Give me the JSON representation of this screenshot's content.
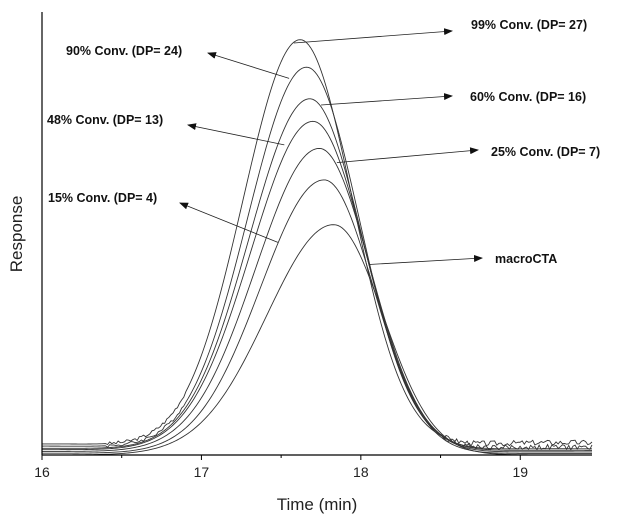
{
  "chart_data": {
    "type": "line",
    "title": "",
    "xlabel": "Time (min)",
    "ylabel": "Response",
    "xlim": [
      16,
      19.45
    ],
    "ylim": [
      0,
      1.0
    ],
    "x_ticks": [
      "16",
      "17",
      "18",
      "19"
    ],
    "x_tick_values": [
      16,
      17,
      18,
      19
    ],
    "y_ticks_shown": false,
    "grid": false,
    "legend": "none (inline arrow annotations)",
    "series": [
      {
        "name": "99% Conv. (DP= 27)",
        "peak_x": 17.62,
        "peak_y": 0.93,
        "width_left": 0.36,
        "width_right": 0.33,
        "baseline": 0.025,
        "tail": 0.04,
        "noise": true
      },
      {
        "name": "90% Conv. (DP= 24)",
        "peak_x": 17.66,
        "peak_y": 0.87,
        "width_left": 0.37,
        "width_right": 0.33,
        "baseline": 0.02,
        "tail": 0.025,
        "noise": true
      },
      {
        "name": "60% Conv. (DP= 16)",
        "peak_x": 17.68,
        "peak_y": 0.8,
        "width_left": 0.38,
        "width_right": 0.33,
        "baseline": 0.015,
        "tail": 0.02,
        "noise": false
      },
      {
        "name": "48% Conv. (DP= 13)",
        "peak_x": 17.7,
        "peak_y": 0.75,
        "width_left": 0.39,
        "width_right": 0.33,
        "baseline": 0.012,
        "tail": 0.015,
        "noise": false
      },
      {
        "name": "25% Conv. (DP= 7)",
        "peak_x": 17.74,
        "peak_y": 0.69,
        "width_left": 0.4,
        "width_right": 0.32,
        "baseline": 0.008,
        "tail": 0.01,
        "noise": false
      },
      {
        "name": "15% Conv. (DP= 4)",
        "peak_x": 17.77,
        "peak_y": 0.62,
        "width_left": 0.4,
        "width_right": 0.31,
        "baseline": 0.004,
        "tail": 0.005,
        "noise": false
      },
      {
        "name": "macroCTA",
        "peak_x": 17.83,
        "peak_y": 0.52,
        "width_left": 0.42,
        "width_right": 0.31,
        "baseline": 0.0,
        "tail": 0.0,
        "noise": false
      }
    ],
    "annotations": [
      {
        "text": "99% Conv. (DP= 27)",
        "side": "right",
        "points_to": "99% Conv. (DP= 27)",
        "target": [
          17.58,
          0.93
        ]
      },
      {
        "text": "90% Conv. (DP= 24)",
        "side": "left",
        "points_to": "90% Conv. (DP= 24)",
        "target": [
          17.55,
          0.85
        ]
      },
      {
        "text": "60% Conv. (DP= 16)",
        "side": "right",
        "points_to": "60% Conv. (DP= 16)",
        "target": [
          17.75,
          0.79
        ]
      },
      {
        "text": "48% Conv. (DP= 13)",
        "side": "left",
        "points_to": "48% Conv. (DP= 13)",
        "target": [
          17.52,
          0.7
        ]
      },
      {
        "text": "25% Conv. (DP= 7)",
        "side": "right",
        "points_to": "25% Conv. (DP= 7)",
        "target": [
          17.85,
          0.66
        ]
      },
      {
        "text": "15% Conv. (DP= 4)",
        "side": "left",
        "points_to": "15% Conv. (DP= 4)",
        "target": [
          17.48,
          0.48
        ]
      },
      {
        "text": "macroCTA",
        "side": "right",
        "points_to": "macroCTA",
        "target": [
          18.05,
          0.43
        ]
      }
    ]
  }
}
